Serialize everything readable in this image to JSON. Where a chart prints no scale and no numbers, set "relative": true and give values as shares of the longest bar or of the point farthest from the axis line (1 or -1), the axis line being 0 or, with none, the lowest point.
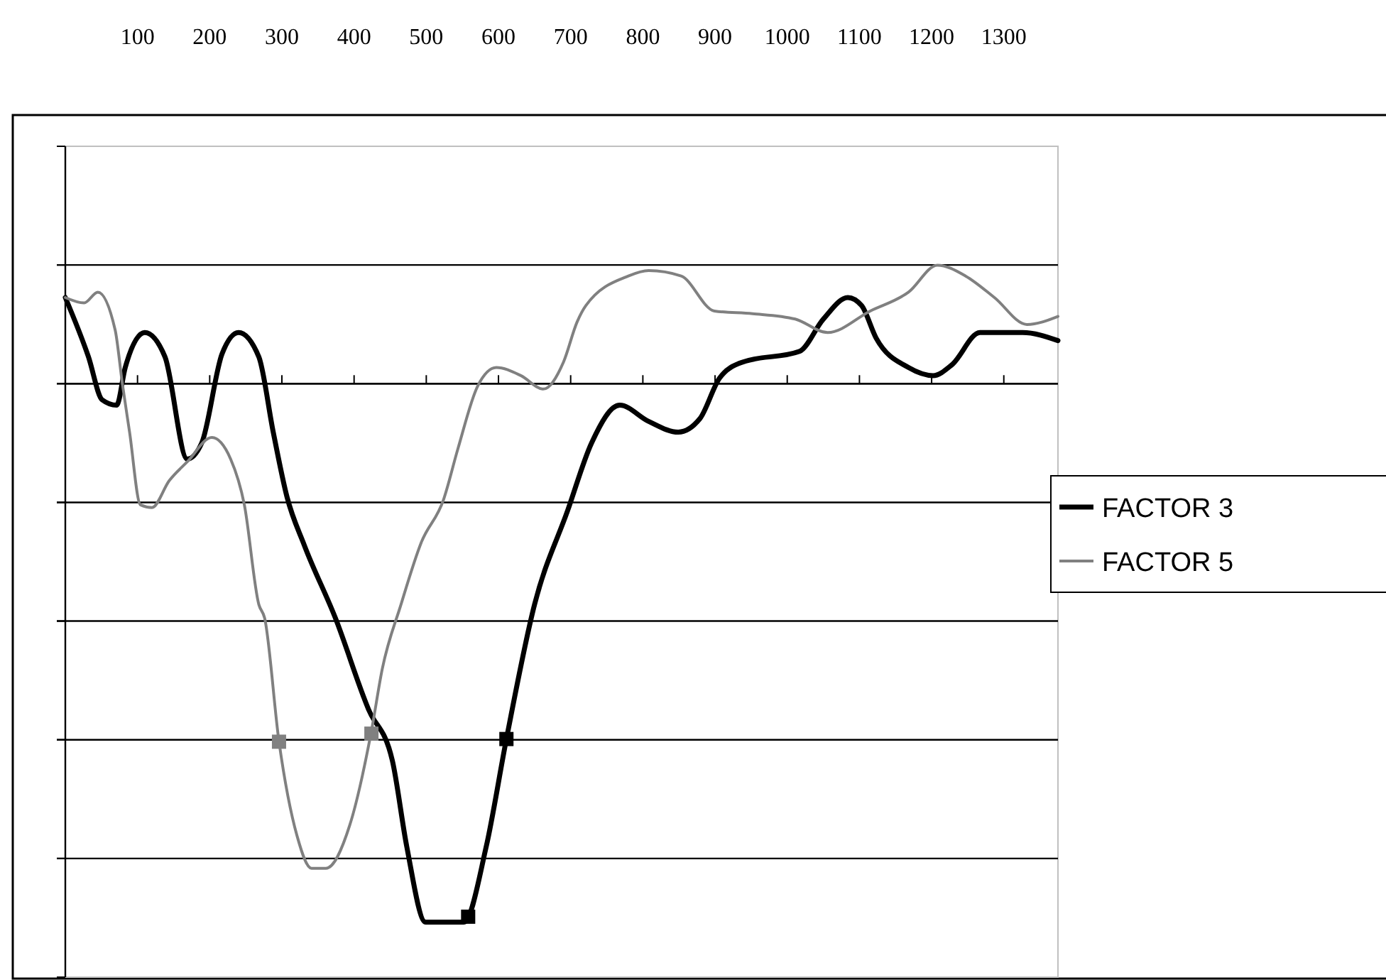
{
  "chart_data": {
    "type": "line",
    "relative": true,
    "xlim": [
      0,
      1375
    ],
    "xticks": [
      100,
      200,
      300,
      400,
      500,
      600,
      700,
      800,
      900,
      1000,
      1100,
      1200,
      1300
    ],
    "grid": "y",
    "legend": "right",
    "marker": "none",
    "line_style": "solid",
    "series": [
      {
        "name": "FACTOR 3",
        "color": "#000000",
        "x": [
          0,
          32,
          51,
          71,
          83,
          110,
          138,
          169,
          189,
          217,
          240,
          268,
          288,
          307,
          331,
          374,
          420,
          453,
          473,
          499,
          552,
          583,
          611,
          650,
          696,
          729,
          768,
          808,
          849,
          879,
          906,
          938,
          1017,
          1050,
          1084,
          1103,
          1123,
          1168,
          1202,
          1228,
          1267,
          1326,
          1375
        ],
        "values": [
          0.16,
          0.05,
          -0.03,
          -0.04,
          0.03,
          0.095,
          0.05,
          -0.14,
          -0.11,
          0.055,
          0.095,
          0.05,
          -0.09,
          -0.21,
          -0.3,
          -0.435,
          -0.605,
          -0.7,
          -0.86,
          -1,
          -1,
          -0.86,
          -0.66,
          -0.41,
          -0.235,
          -0.11,
          -0.04,
          -0.07,
          -0.09,
          -0.065,
          0.01,
          0.04,
          0.06,
          0.12,
          0.16,
          0.145,
          0.085,
          0.03,
          0.015,
          0.035,
          0.095,
          0.095,
          0.08
        ]
      },
      {
        "name": "FACTOR 5",
        "color": "#808080",
        "x": [
          0,
          26,
          45,
          69,
          79,
          89,
          104,
          120,
          144,
          169,
          203,
          229,
          248,
          268,
          276,
          296,
          321,
          341,
          361,
          394,
          424,
          439,
          465,
          493,
          524,
          544,
          571,
          597,
          631,
          662,
          690,
          709,
          721,
          780,
          808,
          853,
          899,
          952,
          1011,
          1056,
          1115,
          1168,
          1208,
          1247,
          1287,
          1332,
          1375
        ],
        "values": [
          0.16,
          0.15,
          0.17,
          0.1,
          0,
          -0.09,
          -0.225,
          -0.23,
          -0.18,
          -0.145,
          -0.1,
          -0.14,
          -0.225,
          -0.41,
          -0.435,
          -0.665,
          -0.84,
          -0.9,
          -0.9,
          -0.82,
          -0.645,
          -0.53,
          -0.41,
          -0.295,
          -0.215,
          -0.12,
          -0.005,
          0.03,
          0.015,
          -0.01,
          0.04,
          0.115,
          0.145,
          0.2,
          0.21,
          0.2,
          0.135,
          0.13,
          0.12,
          0.095,
          0.135,
          0.17,
          0.22,
          0.2,
          0.16,
          0.11,
          0.125
        ]
      },
      {
        "type": "scatter",
        "marker": "square",
        "color": "#000000",
        "x": [
          558,
          611
        ],
        "values": [
          -0.99,
          -0.66
        ]
      },
      {
        "type": "scatter",
        "marker": "square",
        "color": "#808080",
        "x": [
          296,
          424
        ],
        "values": [
          -0.665,
          -0.65
        ]
      }
    ]
  }
}
